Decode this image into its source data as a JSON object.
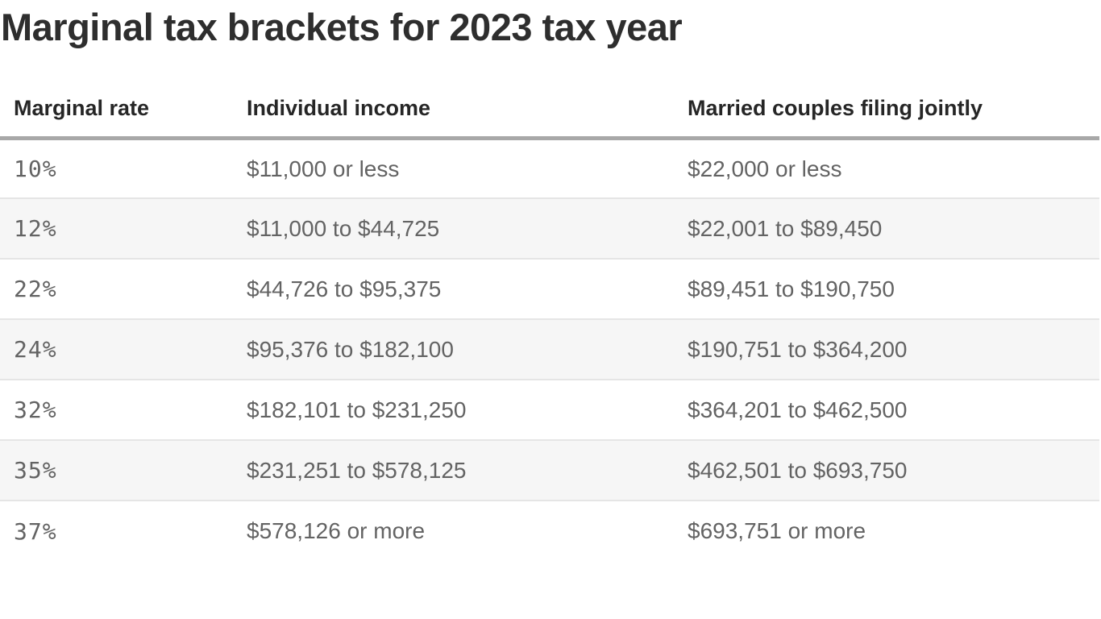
{
  "chart_data": {
    "type": "table",
    "title": "Marginal tax brackets for 2023 tax year",
    "columns": [
      "Marginal rate",
      "Individual income",
      "Married couples filing jointly"
    ],
    "rows": [
      [
        "10%",
        "$11,000 or less",
        "$22,000 or less"
      ],
      [
        "12%",
        "$11,000 to $44,725",
        "$22,001 to $89,450"
      ],
      [
        "22%",
        "$44,726 to $95,375",
        "$89,451 to $190,750"
      ],
      [
        "24%",
        "$95,376 to $182,100",
        "$190,751 to $364,200"
      ],
      [
        "32%",
        "$182,101 to $231,250",
        "$364,201 to $462,500"
      ],
      [
        "35%",
        "$231,251 to $578,125",
        "$462,501 to $693,750"
      ],
      [
        "37%",
        "$578,126 or more",
        "$693,751 or more"
      ]
    ],
    "layout": {
      "zebra_striping": true,
      "shaded_row_indexes": [
        1,
        3,
        5
      ],
      "header_rule": "thick-gray"
    }
  },
  "colors": {
    "title_text": "#2e2e2e",
    "header_text": "#262626",
    "body_text": "#636363",
    "header_rule": "#a8a8a8",
    "row_divider": "#e5e5e5",
    "zebra_row_bg": "#f6f6f6"
  }
}
